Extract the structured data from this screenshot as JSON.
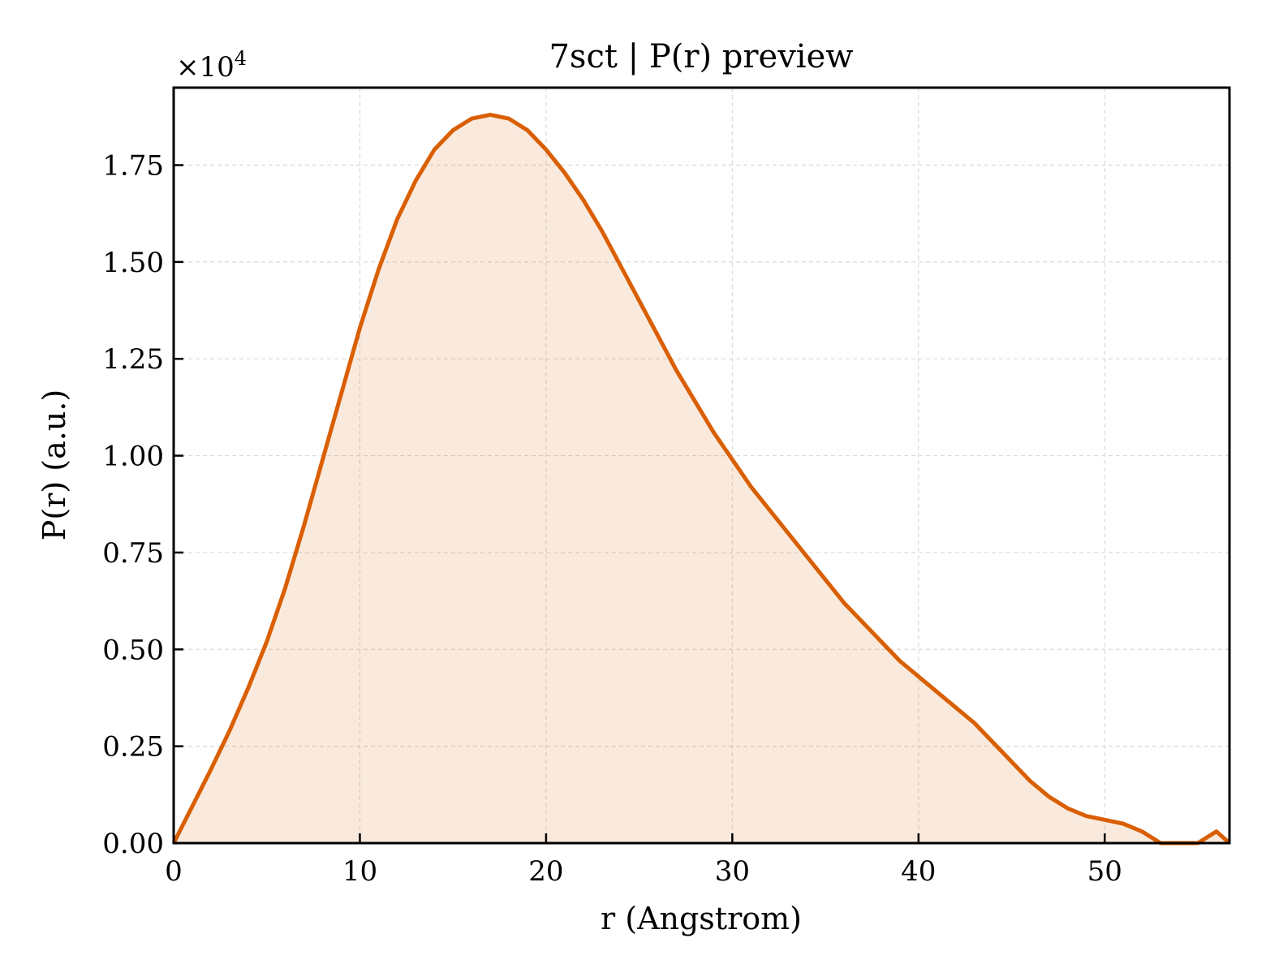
{
  "chart_data": {
    "type": "area",
    "title": "7sct | P(r) preview",
    "xlabel": "r (Angstrom)",
    "ylabel": "P(r) (a.u.)",
    "y_multiplier_text": "×10",
    "y_multiplier_exponent": "4",
    "xlim": [
      0,
      56.7
    ],
    "ylim": [
      0,
      1.95
    ],
    "x_ticks": [
      0,
      10,
      20,
      30,
      40,
      50
    ],
    "x_tick_labels": [
      "0",
      "10",
      "20",
      "30",
      "40",
      "50"
    ],
    "y_ticks": [
      0,
      0.25,
      0.5,
      0.75,
      1.0,
      1.25,
      1.5,
      1.75
    ],
    "y_tick_labels": [
      "0.00",
      "0.25",
      "0.50",
      "0.75",
      "1.00",
      "1.25",
      "1.50",
      "1.75"
    ],
    "grid": true,
    "line_color": "#d95f02",
    "fill_color": "#d95f02",
    "fill_opacity": 0.13,
    "series": [
      {
        "x": [
          0,
          1,
          2,
          3,
          4,
          5,
          6,
          7,
          8,
          9,
          10,
          11,
          12,
          13,
          14,
          15,
          16,
          17,
          18,
          19,
          20,
          21,
          22,
          23,
          24,
          25,
          26,
          27,
          28,
          29,
          30,
          31,
          32,
          33,
          34,
          35,
          36,
          37,
          38,
          39,
          40,
          41,
          42,
          43,
          44,
          45,
          46,
          47,
          48,
          49,
          50,
          51,
          52,
          53,
          54,
          55,
          56,
          56.7
        ],
        "y": [
          0.0,
          0.095,
          0.19,
          0.29,
          0.4,
          0.52,
          0.66,
          0.82,
          0.99,
          1.16,
          1.33,
          1.48,
          1.61,
          1.71,
          1.79,
          1.84,
          1.87,
          1.88,
          1.87,
          1.84,
          1.79,
          1.73,
          1.66,
          1.58,
          1.49,
          1.4,
          1.31,
          1.22,
          1.14,
          1.06,
          0.99,
          0.92,
          0.86,
          0.8,
          0.74,
          0.68,
          0.62,
          0.57,
          0.52,
          0.47,
          0.43,
          0.39,
          0.35,
          0.31,
          0.26,
          0.21,
          0.16,
          0.12,
          0.09,
          0.07,
          0.06,
          0.05,
          0.03,
          0.0,
          0.0,
          0.0,
          0.03,
          0.0
        ]
      }
    ]
  }
}
